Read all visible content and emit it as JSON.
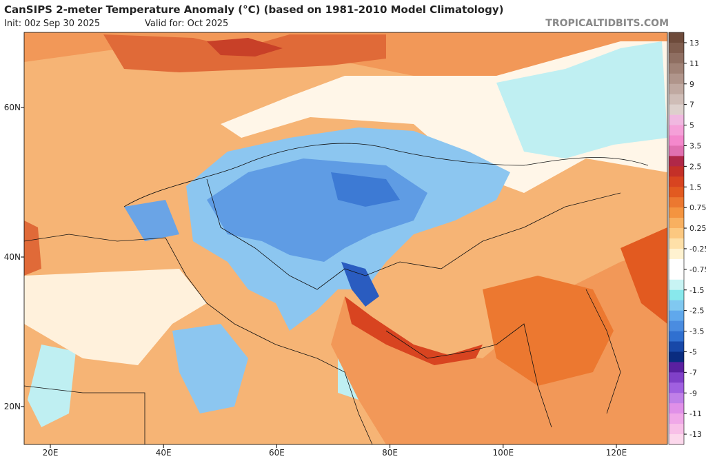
{
  "header": {
    "title": "CanSIPS 2-meter Temperature Anomaly (°C) (based on 1981-2010 Model Climatology)",
    "init": "Init: 00z Sep 30 2025",
    "valid": "Valid for: Oct 2025",
    "site": "TROPICALTIDBITS.COM"
  },
  "map": {
    "lat_labels": [
      "60N",
      "40N",
      "20N"
    ],
    "lon_labels": [
      "20E",
      "40E",
      "60E",
      "80E",
      "100E",
      "120E"
    ]
  },
  "colorbar": {
    "labels": [
      "13",
      "11",
      "9",
      "7",
      "5",
      "3.5",
      "2.5",
      "1.5",
      "0.75",
      "0.25",
      "-0.25",
      "-0.75",
      "-1.5",
      "-2.5",
      "-3.5",
      "-5",
      "-7",
      "-9",
      "-11",
      "-13"
    ],
    "colors": [
      "#6e4b3b",
      "#7f5d4e",
      "#8f6f62",
      "#a08276",
      "#b0958b",
      "#c0a9a1",
      "#cfbdb7",
      "#ddd0cc",
      "#f0b8e0",
      "#f5a0d8",
      "#f488cc",
      "#e070b0",
      "#b02848",
      "#c43028",
      "#d84420",
      "#e25a20",
      "#ec7830",
      "#f49440",
      "#f8b060",
      "#fcc880",
      "#fee0a8",
      "#fff2d0",
      "#ffffff",
      "#ffffff",
      "#c8f4f4",
      "#88e8ec",
      "#80c8f0",
      "#60a8ec",
      "#4a8ce0",
      "#3070d0",
      "#1848a8",
      "#0a2c80",
      "#5a20a0",
      "#8040c8",
      "#a060e0",
      "#c080e8",
      "#e090e8",
      "#f0a8e8",
      "#f8c0e8",
      "#fcd8ec"
    ]
  }
}
